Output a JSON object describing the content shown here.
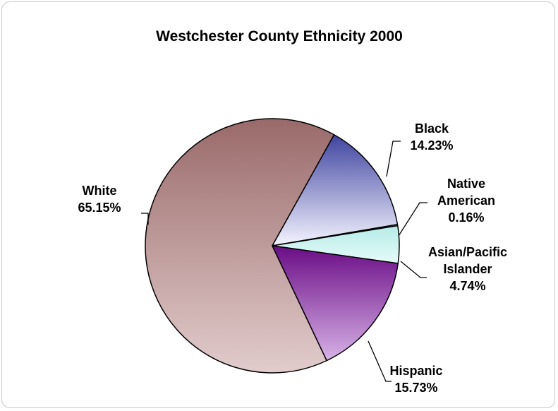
{
  "chart_data": {
    "type": "pie",
    "title": "Westchester County Ethnicity 2000",
    "slices": [
      {
        "name": "White",
        "value": 65.15,
        "value_label": "65.15%",
        "color_top": "#9a6a6a",
        "color_bottom": "#e2cccc"
      },
      {
        "name": "Black",
        "value": 14.23,
        "value_label": "14.23%",
        "color_top": "#3f449f",
        "color_bottom": "#f4f4ff"
      },
      {
        "name": "Native American",
        "value": 0.16,
        "value_label": "0.16%",
        "color_top": "#f2ffff",
        "color_bottom": "#f2ffff"
      },
      {
        "name": "Asian/Pacific Islander",
        "value": 4.74,
        "value_label": "4.74%",
        "color_top": "#b5ebe7",
        "color_bottom": "#e6fbf9"
      },
      {
        "name": "Hispanic",
        "value": 15.73,
        "value_label": "15.73%",
        "color_top": "#6a0c86",
        "color_bottom": "#d7b2e6"
      }
    ],
    "label_lines": {
      "White": [
        "White"
      ],
      "Black": [
        "Black"
      ],
      "Native American": [
        "Native",
        "American"
      ],
      "Asian/Pacific Islander": [
        "Asian/Pacific",
        "Islander"
      ],
      "Hispanic": [
        "Hispanic"
      ]
    },
    "legend": "none",
    "start_angle_deg": 0,
    "direction": "counterclockwise"
  }
}
